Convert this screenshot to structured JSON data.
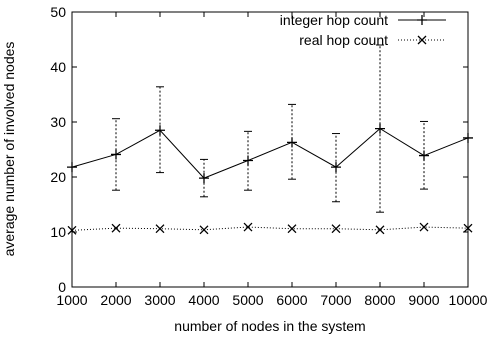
{
  "chart_data": {
    "type": "line",
    "title": "",
    "xlabel": "number of nodes in the system",
    "ylabel": "average number of involved nodes",
    "xlim": [
      1000,
      10000
    ],
    "ylim": [
      0,
      50
    ],
    "x_ticks": [
      "1000",
      "2000",
      "3000",
      "4000",
      "5000",
      "6000",
      "7000",
      "8000",
      "9000",
      "10000"
    ],
    "y_ticks": [
      "0",
      "10",
      "20",
      "30",
      "40",
      "50"
    ],
    "x": [
      1000,
      2000,
      3000,
      4000,
      5000,
      6000,
      7000,
      8000,
      9000,
      10000
    ],
    "grid": false,
    "legend_position": "top-right",
    "series": [
      {
        "name": "integer hop count",
        "line_style": "solid",
        "marker": "plus",
        "values": [
          21.8,
          24.1,
          28.5,
          19.8,
          23.0,
          26.3,
          21.8,
          28.8,
          23.9,
          27.1
        ],
        "err_low": [
          21.8,
          17.6,
          20.8,
          16.4,
          17.6,
          19.6,
          15.5,
          13.6,
          17.8,
          27.1
        ],
        "err_high": [
          21.8,
          30.6,
          36.4,
          23.2,
          28.3,
          33.2,
          27.9,
          44.0,
          30.1,
          27.1
        ]
      },
      {
        "name": "real hop count",
        "line_style": "dotted",
        "marker": "x",
        "values": [
          10.3,
          10.7,
          10.6,
          10.4,
          10.9,
          10.6,
          10.6,
          10.4,
          10.9,
          10.7
        ]
      }
    ]
  }
}
